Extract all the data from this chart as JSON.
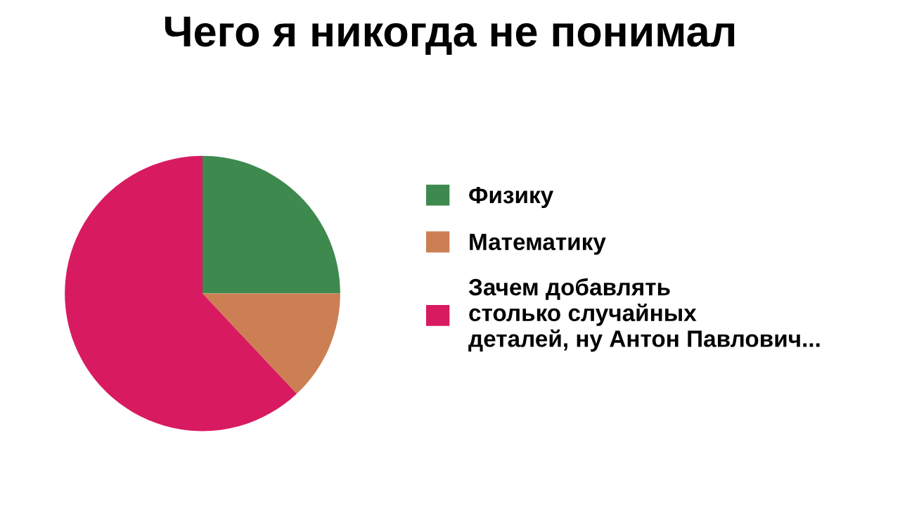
{
  "chart_data": {
    "type": "pie",
    "title": "Чего я никогда не понимал",
    "categories": [
      "Физику",
      "Математику",
      "Зачем добавлять\nстолько случайных\nдеталей, ну Антон Павлович..."
    ],
    "values": [
      25,
      13,
      62
    ],
    "colors": [
      "#3e8a4e",
      "#cd7f54",
      "#d81b60"
    ],
    "legend": "right"
  }
}
